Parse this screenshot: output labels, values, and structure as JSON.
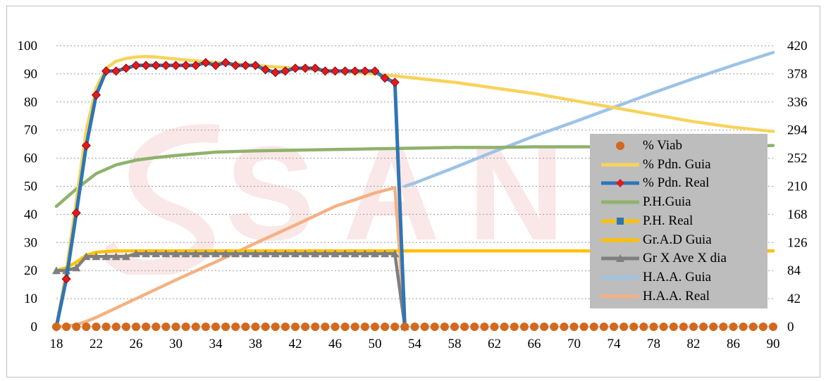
{
  "chart_data": {
    "type": "line",
    "x_ticks": [
      18,
      22,
      26,
      30,
      34,
      38,
      42,
      46,
      50,
      54,
      58,
      62,
      66,
      70,
      74,
      78,
      82,
      86,
      90
    ],
    "y_left_ticks": [
      0,
      10,
      20,
      30,
      40,
      50,
      60,
      70,
      80,
      90,
      100
    ],
    "y_right_ticks": [
      0,
      42,
      84,
      126,
      168,
      210,
      252,
      294,
      336,
      378,
      420
    ],
    "xlim": [
      18,
      90
    ],
    "ylim_left": [
      0,
      100
    ],
    "ylim_right": [
      0,
      420
    ],
    "grid": "horizontal-dotted",
    "legend_position": "right",
    "watermark_text": "SANA",
    "series": [
      {
        "name": "% Viab",
        "style": "dots",
        "color": "#d2691e",
        "axis": "left",
        "x": [
          18,
          19,
          20,
          21,
          22,
          23,
          24,
          25,
          26,
          27,
          28,
          29,
          30,
          31,
          32,
          33,
          34,
          35,
          36,
          37,
          38,
          39,
          40,
          41,
          42,
          43,
          44,
          45,
          46,
          47,
          48,
          49,
          50,
          51,
          52,
          53,
          54,
          55,
          56,
          57,
          58,
          59,
          60,
          61,
          62,
          63,
          64,
          65,
          66,
          67,
          68,
          69,
          70,
          71,
          72,
          73,
          74,
          75,
          76,
          77,
          78,
          79,
          80,
          81,
          82,
          83,
          84,
          85,
          86,
          87,
          88,
          89,
          90
        ],
        "y": [
          0,
          0,
          0,
          0,
          0,
          0,
          0,
          0,
          0,
          0,
          0,
          0,
          0,
          0,
          0,
          0,
          0,
          0,
          0,
          0,
          0,
          0,
          0,
          0,
          0,
          0,
          0,
          0,
          0,
          0,
          0,
          0,
          0,
          0,
          0,
          0,
          0,
          0,
          0,
          0,
          0,
          0,
          0,
          0,
          0,
          0,
          0,
          0,
          0,
          0,
          0,
          0,
          0,
          0,
          0,
          0,
          0,
          0,
          0,
          0,
          0,
          0,
          0,
          0,
          0,
          0,
          0,
          0,
          0,
          0,
          0,
          0,
          0
        ]
      },
      {
        "name": "% Pdn. Guia",
        "style": "line",
        "color": "#f7d35c",
        "axis": "left",
        "x": [
          18,
          19,
          20,
          21,
          22,
          23,
          24,
          25,
          26,
          27,
          28,
          30,
          34,
          38,
          42,
          46,
          50,
          54,
          58,
          62,
          66,
          70,
          74,
          78,
          82,
          86,
          90
        ],
        "y": [
          0,
          20,
          45,
          70,
          85,
          92,
          94.5,
          95.5,
          96,
          96.2,
          96,
          95.3,
          94,
          93,
          92,
          91,
          90,
          88.5,
          87,
          85,
          83,
          80.5,
          78,
          75.5,
          73,
          71,
          69.5
        ]
      },
      {
        "name": "% Pdn. Real",
        "style": "line-diamond",
        "color": "#2e75b6",
        "marker_color": "#e31a1c",
        "axis": "left",
        "x": [
          18,
          19,
          20,
          21,
          22,
          23,
          24,
          25,
          26,
          27,
          28,
          29,
          30,
          31,
          32,
          33,
          34,
          35,
          36,
          37,
          38,
          39,
          40,
          41,
          42,
          43,
          44,
          45,
          46,
          47,
          48,
          49,
          50,
          51,
          52,
          53
        ],
        "y": [
          0,
          17,
          40.5,
          64.5,
          82.5,
          91,
          91,
          92,
          93,
          93,
          93,
          93,
          93,
          93,
          93,
          94,
          93,
          94,
          93,
          93,
          93,
          91.5,
          90.5,
          91,
          92,
          92,
          92,
          91,
          91,
          91,
          91,
          91,
          91,
          88.5,
          87,
          0
        ]
      },
      {
        "name": "P.H.Guia",
        "style": "line",
        "color": "#8fb26b",
        "axis": "right",
        "x": [
          18,
          20,
          22,
          24,
          26,
          28,
          30,
          34,
          38,
          42,
          46,
          50,
          54,
          58,
          62,
          66,
          70,
          74,
          78,
          82,
          86,
          90
        ],
        "y": [
          180,
          206,
          229,
          242,
          249,
          253,
          256,
          261,
          263,
          264,
          265,
          266,
          267,
          268,
          268,
          269,
          269,
          269,
          270,
          270,
          270,
          271
        ]
      },
      {
        "name": "P.H. Real",
        "style": "line-square",
        "color": "#ffc000",
        "marker_color": "#2e75b6",
        "axis": "left",
        "x": [],
        "y": []
      },
      {
        "name": "Gr.A.D Guia",
        "style": "line",
        "color": "#ffc000",
        "axis": "left",
        "x": [
          18,
          19,
          20,
          21,
          22,
          23,
          24,
          26,
          30,
          34,
          38,
          42,
          46,
          50,
          52,
          53,
          54,
          60,
          66,
          72,
          78,
          84,
          90
        ],
        "y": [
          20,
          21,
          23,
          25.5,
          26.5,
          26.8,
          27,
          27,
          27,
          27,
          27,
          27,
          27,
          27,
          27,
          27,
          27,
          27,
          27,
          27,
          27,
          27,
          27
        ]
      },
      {
        "name": "Gr X Ave X dia",
        "style": "line-triangle",
        "color": "#7f7f7f",
        "axis": "left",
        "x": [
          18,
          19,
          20,
          21,
          22,
          23,
          24,
          25,
          26,
          27,
          28,
          29,
          30,
          31,
          32,
          33,
          34,
          35,
          36,
          37,
          38,
          39,
          40,
          41,
          42,
          43,
          44,
          45,
          46,
          47,
          48,
          49,
          50,
          51,
          52,
          53
        ],
        "y": [
          20,
          20,
          21,
          25,
          25,
          25,
          25,
          25,
          26,
          26,
          26,
          26,
          26,
          26,
          26,
          26,
          26,
          26,
          26,
          26,
          26,
          26,
          26,
          26,
          26,
          26,
          26,
          26,
          26,
          26,
          26,
          26,
          26,
          26,
          26,
          0
        ]
      },
      {
        "name": "H.A.A. Guia",
        "style": "line",
        "color": "#9dc3e6",
        "axis": "right",
        "x": [
          53,
          54,
          58,
          62,
          66,
          70,
          74,
          78,
          82,
          86,
          90
        ],
        "y": [
          210,
          215,
          238,
          262,
          285,
          306,
          328,
          350,
          371,
          391,
          410
        ]
      },
      {
        "name": "H.A.A. Real",
        "style": "line",
        "color": "#f4b183",
        "axis": "right",
        "x": [
          18,
          19,
          20,
          21,
          22,
          24,
          26,
          30,
          34,
          38,
          42,
          46,
          50,
          52,
          53
        ],
        "y": [
          0,
          1,
          3,
          8,
          14,
          28,
          42,
          70,
          97,
          125,
          152,
          180,
          200,
          208,
          0
        ]
      }
    ]
  }
}
